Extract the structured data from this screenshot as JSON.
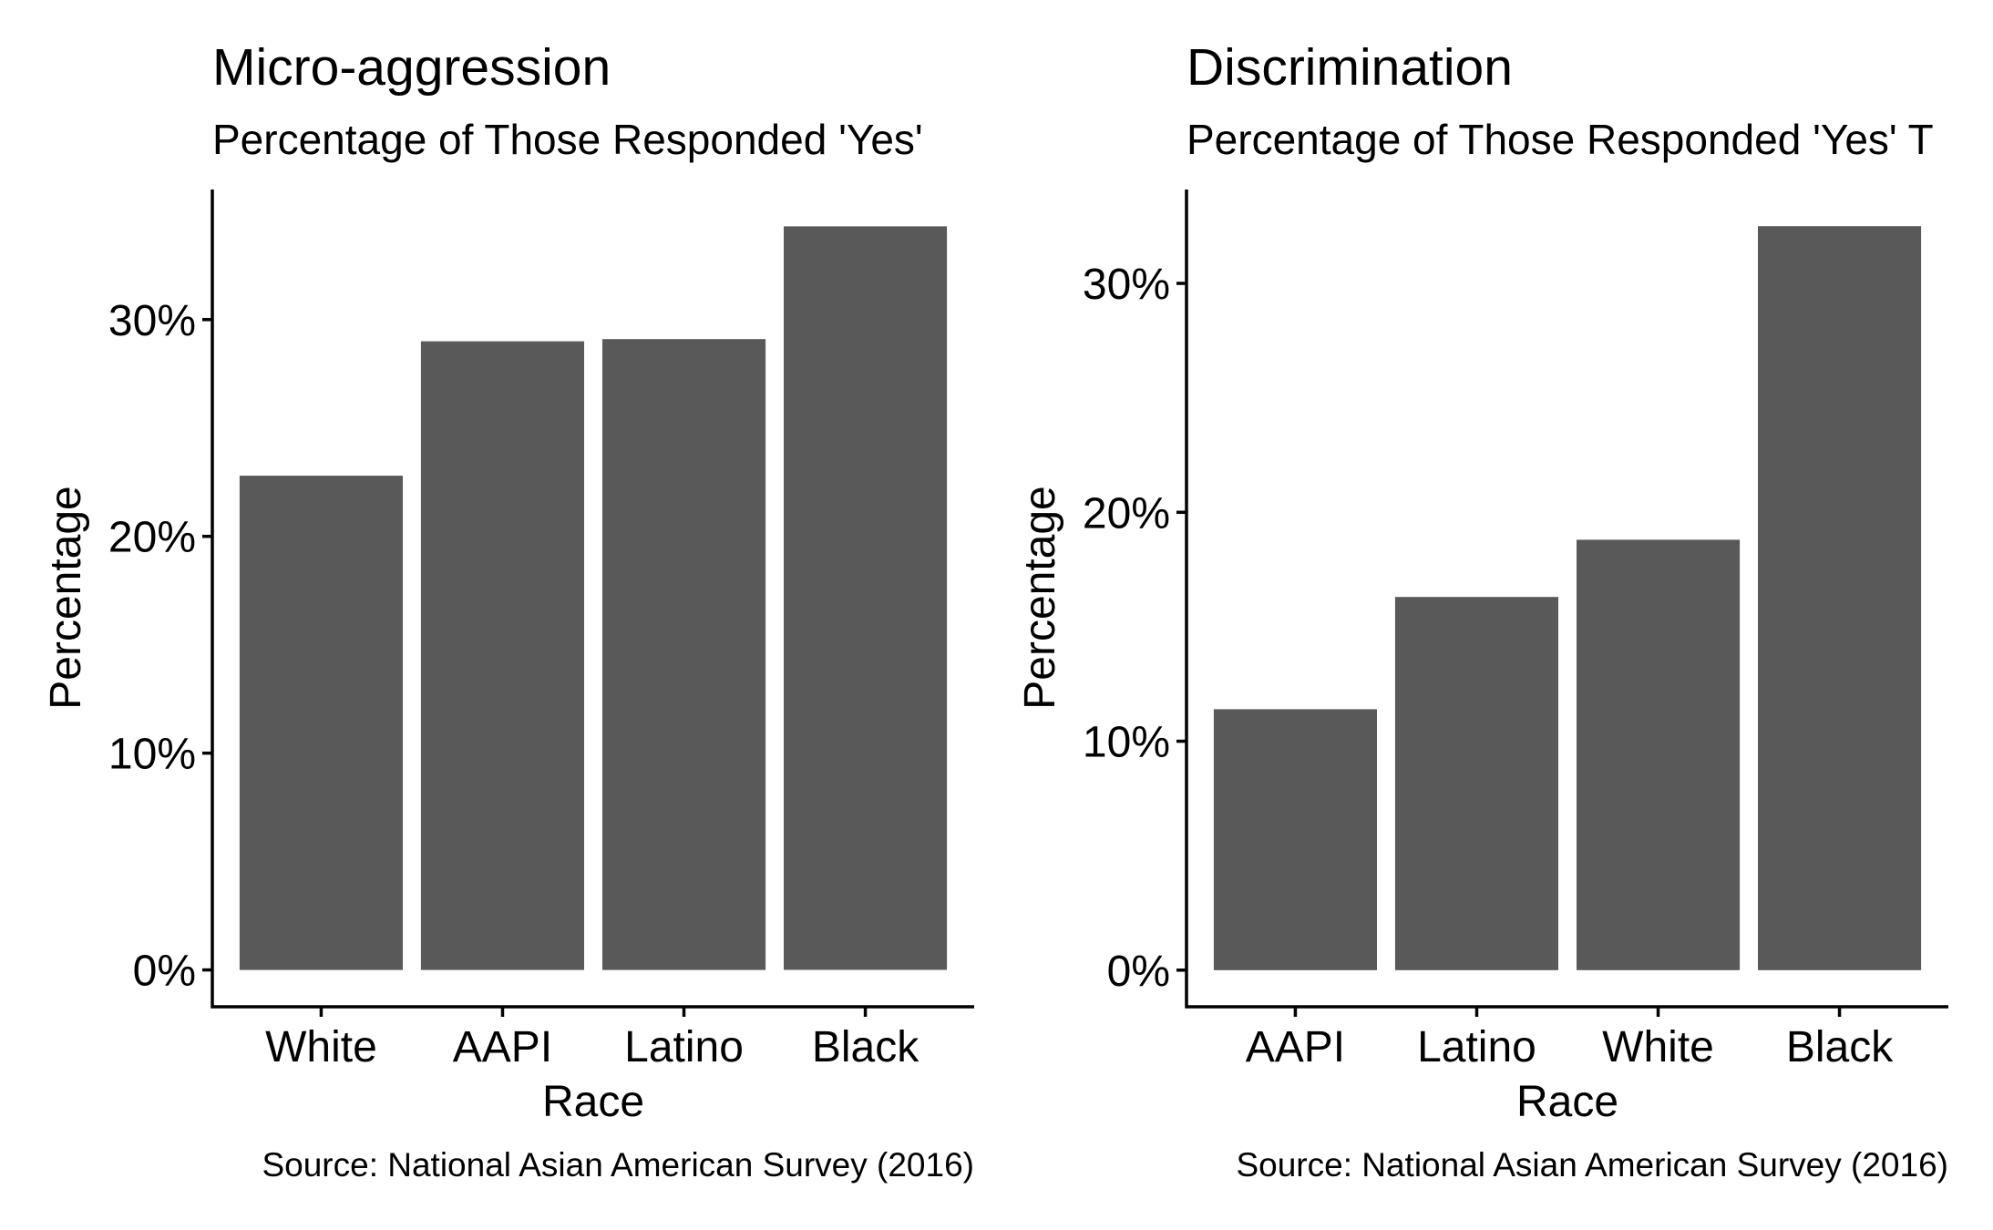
{
  "chart_data": [
    {
      "type": "bar",
      "title": "Micro-aggression",
      "subtitle": "Percentage of Those Responded 'Yes'",
      "xlabel": "Race",
      "ylabel": "Percentage",
      "caption": "Source: National Asian American Survey (2016)",
      "categories": [
        "White",
        "AAPI",
        "Latino",
        "Black"
      ],
      "values": [
        22.8,
        29.0,
        29.1,
        34.3
      ],
      "ylim": [
        -1.7,
        36.0
      ],
      "yticks": [
        0,
        10,
        20,
        30
      ],
      "ytick_labels": [
        "0%",
        "10%",
        "20%",
        "30%"
      ],
      "bar_color": "#595959",
      "grid": false,
      "legend": "none"
    },
    {
      "type": "bar",
      "title": "Discrimination",
      "subtitle": "Percentage of Those Responded 'Yes' T",
      "xlabel": "Race",
      "ylabel": "Percentage",
      "caption": "Source: National Asian American Survey (2016)",
      "categories": [
        "AAPI",
        "Latino",
        "White",
        "Black"
      ],
      "values": [
        11.4,
        16.3,
        18.8,
        32.5
      ],
      "ylim": [
        -1.6,
        34.1
      ],
      "yticks": [
        0,
        10,
        20,
        30
      ],
      "ytick_labels": [
        "0%",
        "10%",
        "20%",
        "30%"
      ],
      "bar_color": "#595959",
      "grid": false,
      "legend": "none"
    }
  ]
}
